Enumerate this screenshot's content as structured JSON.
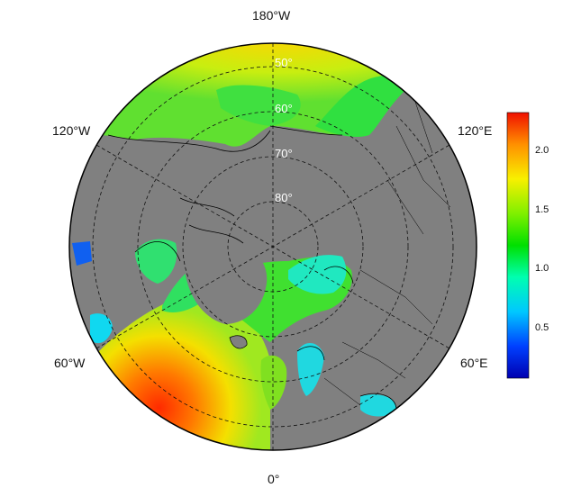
{
  "map": {
    "projection": "north-polar-stereographic",
    "land_color": "#808080",
    "coast_color": "#000000",
    "grid_style": "dashed",
    "meridian_labels": [
      "180°W",
      "120°E",
      "60°E",
      "0°",
      "60°W",
      "120°W"
    ],
    "parallel_labels": [
      "50°",
      "60°",
      "70°",
      "80°"
    ]
  },
  "colorbar": {
    "colormap": "jet",
    "min": 0.1,
    "max": 2.3,
    "ticks": [
      "2.0",
      "1.5",
      "1.0",
      "0.5"
    ],
    "tick_values": [
      2.0,
      1.5,
      1.0,
      0.5
    ]
  }
}
